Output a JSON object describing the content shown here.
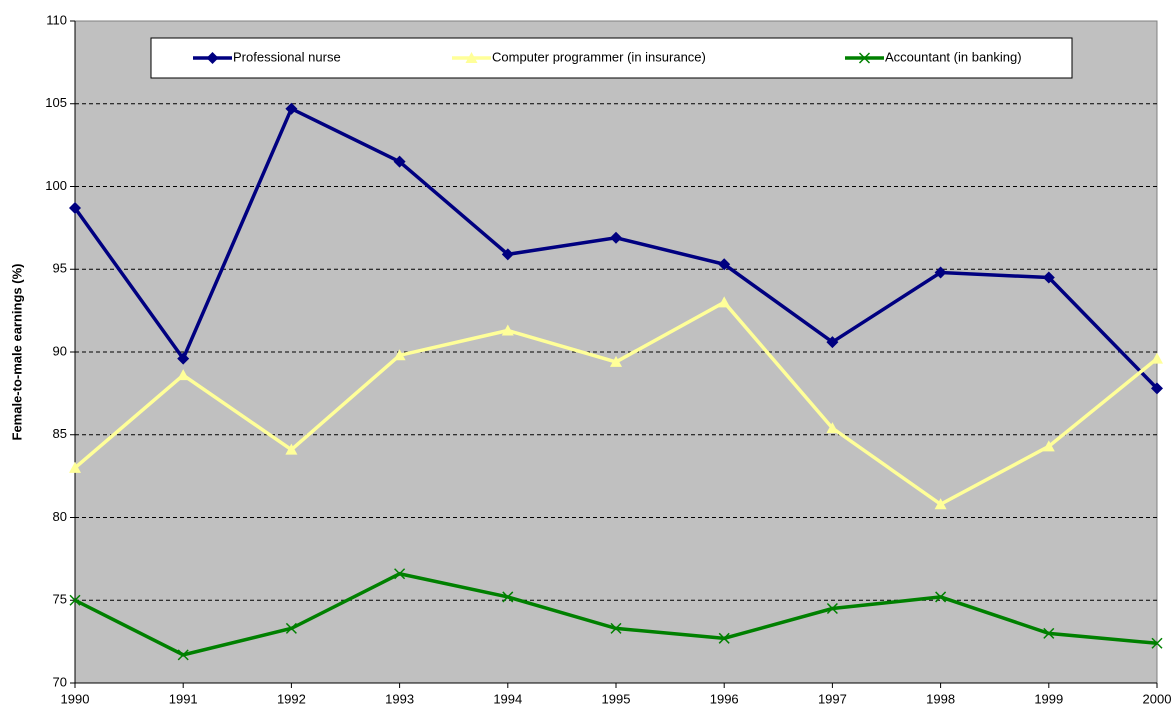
{
  "chart_data": {
    "type": "line",
    "y_label": "Female-to-male earnings (%)",
    "x": [
      1990,
      1991,
      1992,
      1993,
      1994,
      1995,
      1996,
      1997,
      1998,
      1999,
      2000
    ],
    "xlim": [
      1990,
      2000
    ],
    "xticks": [
      1990,
      1991,
      1992,
      1993,
      1994,
      1995,
      1996,
      1997,
      1998,
      1999,
      2000
    ],
    "ylim": [
      70,
      110
    ],
    "yticks": [
      70,
      75,
      80,
      85,
      90,
      95,
      100,
      105,
      110
    ],
    "grid": true,
    "legend": "top",
    "series": [
      {
        "name": "Professional nurse",
        "color": "#000080",
        "marker": "diamond",
        "values": [
          98.7,
          89.6,
          104.7,
          101.5,
          95.9,
          96.9,
          95.3,
          90.6,
          94.8,
          94.5,
          87.8
        ]
      },
      {
        "name": "Computer programmer (in insurance)",
        "color": "#ffff99",
        "marker": "triangle",
        "values": [
          83.0,
          88.6,
          84.1,
          89.8,
          91.3,
          89.4,
          93.0,
          85.4,
          80.8,
          84.3,
          89.6
        ]
      },
      {
        "name": "Accountant (in banking)",
        "color": "#008000",
        "marker": "x",
        "values": [
          75.0,
          71.7,
          73.3,
          76.6,
          75.2,
          73.3,
          72.7,
          74.5,
          75.2,
          73.0,
          72.4
        ]
      }
    ]
  }
}
